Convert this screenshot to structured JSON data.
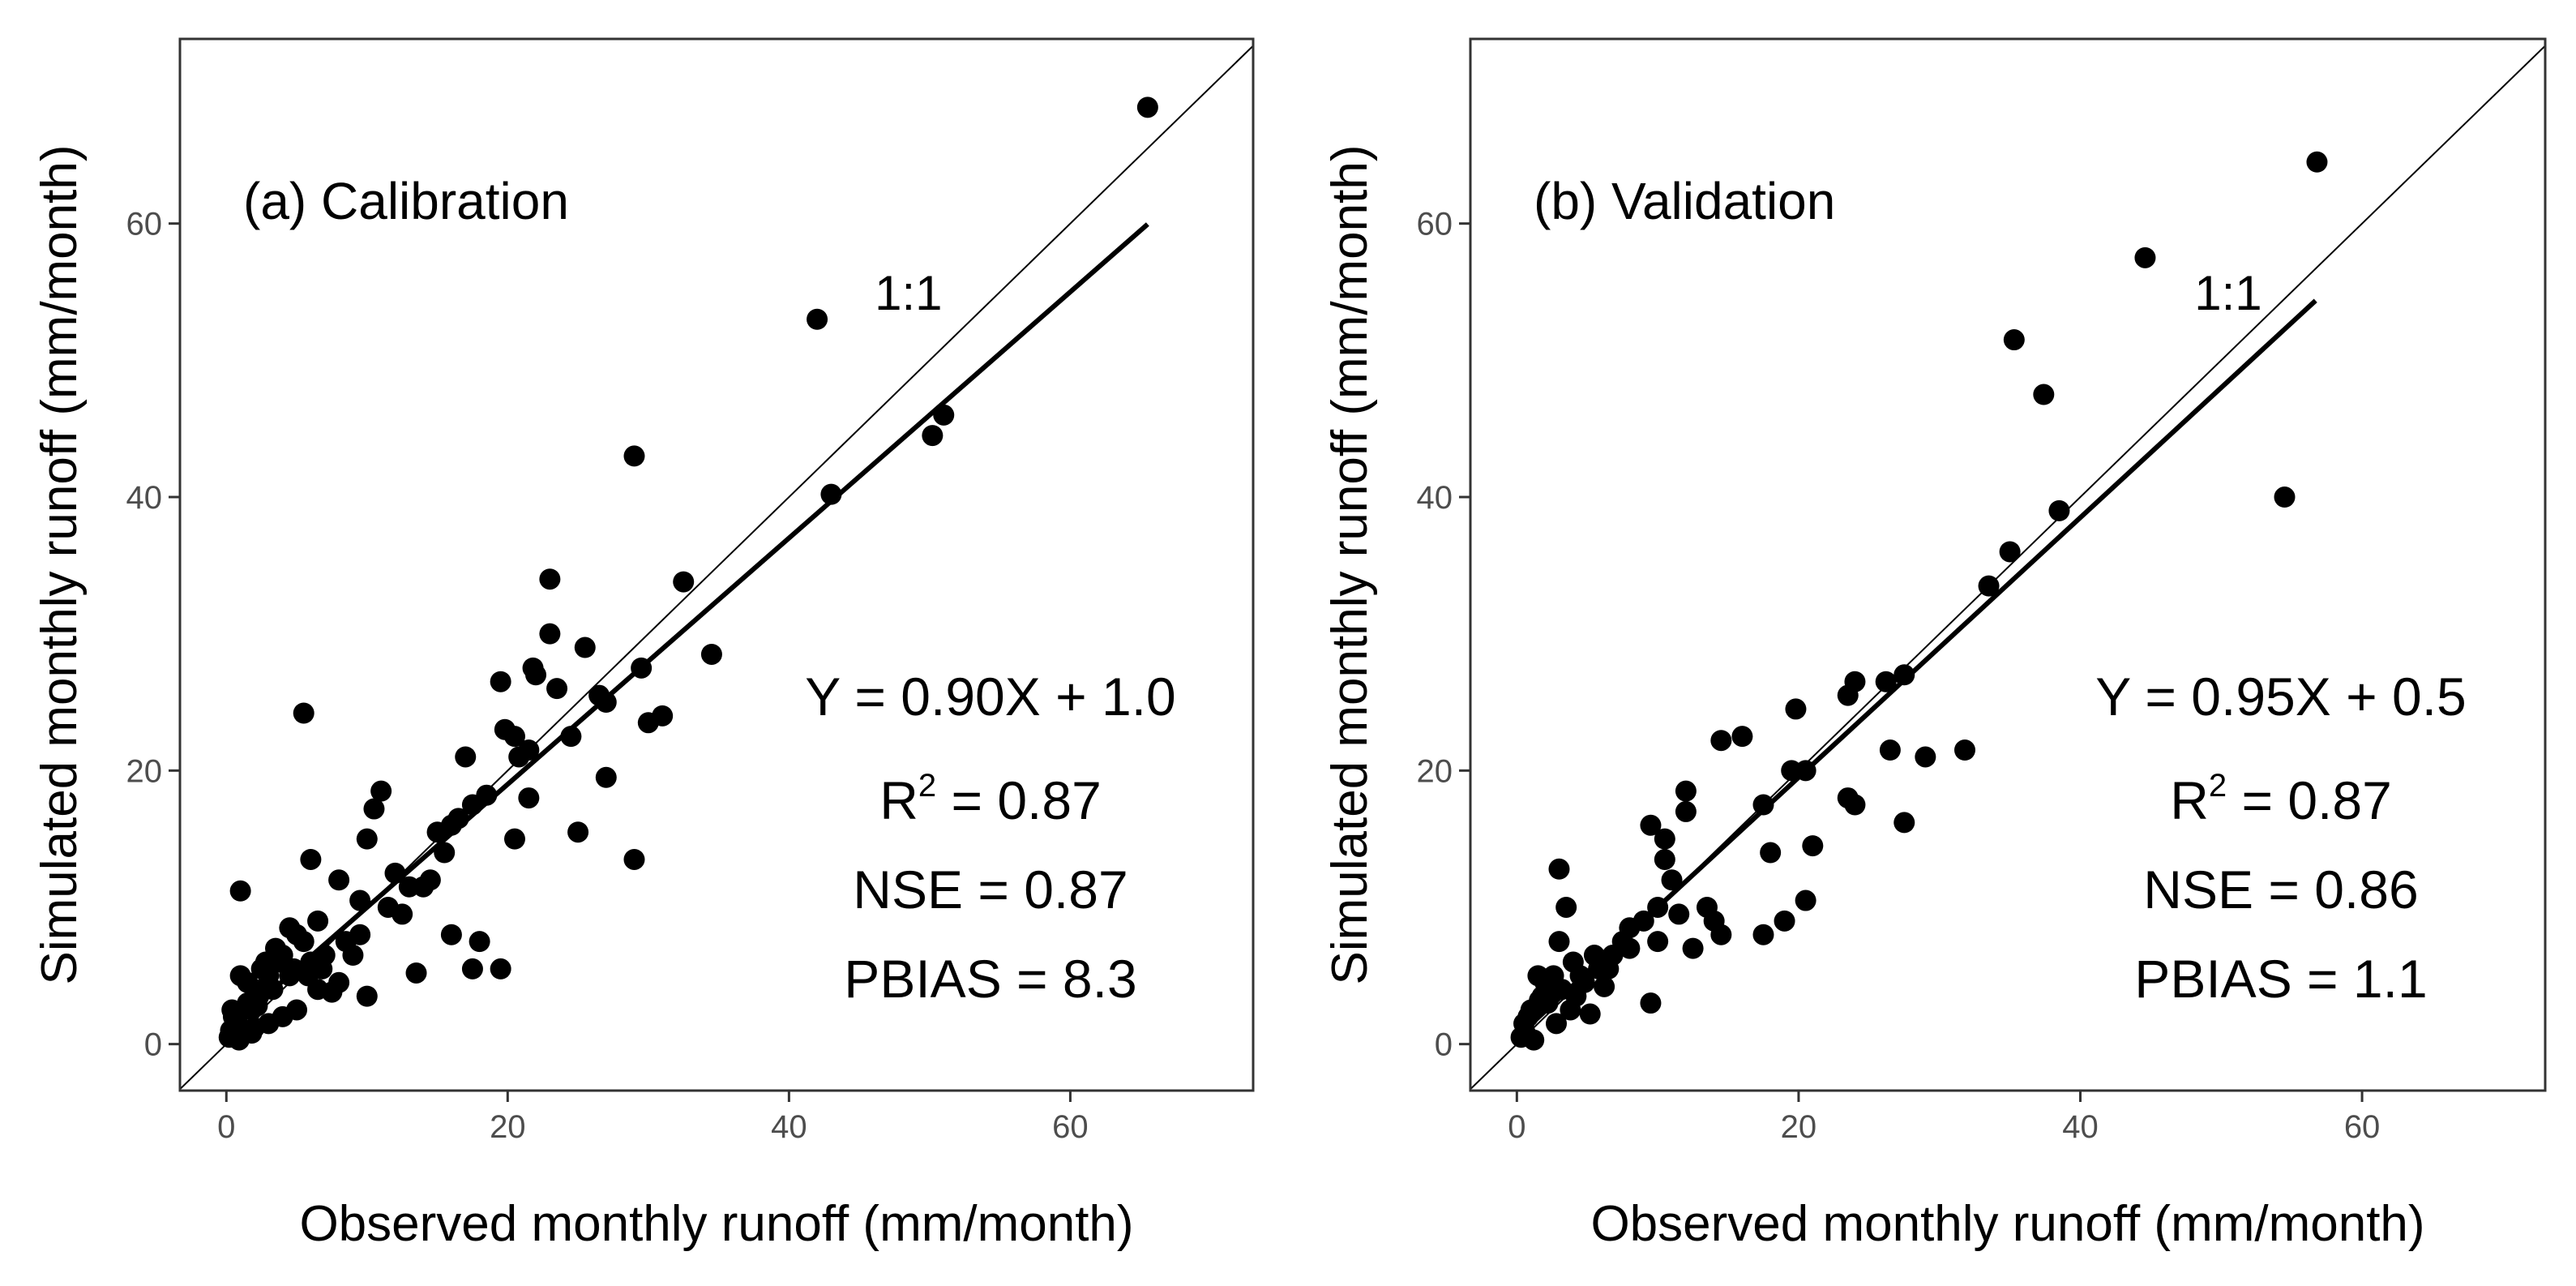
{
  "chart_data": [
    {
      "type": "scatter",
      "panel_label": "(a) Calibration",
      "xlabel": "Observed monthly runoff (mm/month)",
      "ylabel": "Simulated monthly runoff (mm/month)",
      "xlim": [
        -3.3,
        73
      ],
      "ylim": [
        -3.4,
        73.5
      ],
      "xticks": [
        0,
        20,
        40,
        60
      ],
      "yticks": [
        0,
        20,
        40,
        60
      ],
      "grid": false,
      "one_to_one_label": "1:1",
      "one_to_one_label_at": [
        48.5,
        55
      ],
      "equation": "Y = 0.90X + 1.0",
      "r2_label": "R",
      "r2_sup": "2",
      "r2_value": " = 0.87",
      "nse": "NSE = 0.87",
      "pbias": "PBIAS = 8.3",
      "fit": {
        "slope": 0.9,
        "intercept": 1.0,
        "x_range": [
          0,
          65.5
        ]
      },
      "x": [
        65.5,
        42,
        43,
        50.2,
        51,
        29,
        23,
        32.5,
        23,
        21.8,
        25.5,
        22,
        23.5,
        19.5,
        20.5,
        19.8,
        30,
        31,
        34.5,
        29.5,
        27,
        26.5,
        24.5,
        21.5,
        20.8,
        25,
        27,
        20.5,
        21.5,
        29,
        5.5,
        17,
        18.5,
        17.5,
        16,
        15.5,
        14.5,
        13,
        12,
        11,
        10.5,
        10,
        8,
        9.5,
        11.5,
        12.5,
        14,
        15,
        16.5,
        18,
        19.5,
        17.5,
        16,
        13.5,
        10,
        6,
        6.5,
        5,
        5.5,
        4.5,
        4,
        3.5,
        3,
        2.5,
        2,
        1.5,
        1,
        1,
        0.5,
        0.3,
        0.8,
        1.8,
        2.3,
        3.3,
        4.5,
        6,
        7,
        8.5,
        9.5,
        7.5,
        8,
        6.5,
        5,
        4,
        3,
        2,
        1.2,
        0.6,
        0.2,
        0.4,
        1.5,
        2.8,
        3.8,
        4.8,
        5.8,
        6.8,
        9,
        1.8,
        0.9,
        2.2
      ],
      "y": [
        68.5,
        53,
        40.2,
        44.5,
        46,
        43,
        34,
        33.8,
        30,
        27.5,
        29,
        27,
        26,
        26.5,
        22.5,
        23,
        23.5,
        24,
        28.5,
        27.5,
        25,
        25.5,
        22.5,
        21.5,
        21,
        15.5,
        19.5,
        15,
        18,
        13.5,
        24.2,
        21,
        18.2,
        17.5,
        16,
        14,
        12,
        11.5,
        12.5,
        18.5,
        17.2,
        15,
        12,
        10.5,
        10,
        9.5,
        11.5,
        15.5,
        16.5,
        7.5,
        5.5,
        5.5,
        8,
        5.2,
        3.5,
        13.5,
        9,
        8,
        7.5,
        8.5,
        6.5,
        7,
        5,
        5.5,
        4,
        3,
        11.2,
        5,
        2,
        1,
        1.5,
        2.5,
        3.5,
        4,
        5,
        6,
        6.5,
        7.5,
        8,
        3.8,
        4.5,
        4,
        2.5,
        2,
        1.5,
        1.2,
        0.8,
        0.5,
        0.5,
        2.5,
        4.5,
        6,
        6,
        5.5,
        5,
        5.5,
        6.5,
        0.8,
        0.3,
        2.8
      ]
    },
    {
      "type": "scatter",
      "panel_label": "(b) Validation",
      "xlabel": "Observed monthly runoff (mm/month)",
      "ylabel": "Simulated monthly runoff (mm/month)",
      "xlim": [
        -3.3,
        73
      ],
      "ylim": [
        -3.4,
        73.5
      ],
      "xticks": [
        0,
        20,
        40,
        60
      ],
      "yticks": [
        0,
        20,
        40,
        60
      ],
      "grid": false,
      "one_to_one_label": "1:1",
      "one_to_one_label_at": [
        50.5,
        55
      ],
      "equation": "Y = 0.95X + 0.5",
      "r2_label": "R",
      "r2_sup": "2",
      "r2_value": " = 0.87",
      "nse": "NSE = 0.86",
      "pbias": "PBIAS = 1.1",
      "fit": {
        "slope": 0.95,
        "intercept": 0.5,
        "x_range": [
          0,
          56.7
        ]
      },
      "x": [
        56.8,
        44.6,
        35.3,
        37.4,
        54.5,
        38.5,
        35,
        33.5,
        27.5,
        26.2,
        24,
        23.5,
        20.5,
        19.5,
        17.5,
        16,
        14.5,
        19.8,
        23.5,
        24,
        26.5,
        29,
        31.8,
        27.5,
        21,
        20.5,
        19,
        18,
        17.5,
        12,
        12,
        10.5,
        10.5,
        9.5,
        8,
        9.5,
        10,
        11,
        12.5,
        14,
        14.5,
        13.5,
        11.5,
        10,
        9,
        8,
        6.5,
        5.5,
        4.5,
        4,
        3.5,
        3,
        3,
        2.5,
        2,
        1.8,
        1.5,
        1,
        0.5,
        0.3,
        0.8,
        2.2,
        3.2,
        4.8,
        5.8,
        6.8,
        7.5,
        1.2,
        2.8,
        3.8,
        0.6,
        1.6,
        2.6,
        4.2,
        5.2,
        6.2
      ],
      "y": [
        64.5,
        57.5,
        51.5,
        47.5,
        40,
        39,
        36,
        33.5,
        27,
        26.5,
        26.5,
        25.5,
        20,
        20,
        17.5,
        22.5,
        22.2,
        24.5,
        18,
        17.5,
        21.5,
        21,
        21.5,
        16.2,
        14.5,
        10.5,
        9,
        14,
        8,
        18.5,
        17,
        15,
        13.5,
        16,
        8.5,
        3,
        10,
        12,
        7,
        9,
        8,
        10,
        9.5,
        7.5,
        9,
        7,
        5.5,
        6.5,
        5,
        6,
        10,
        12.8,
        7.5,
        4,
        4.5,
        3.5,
        5,
        2.5,
        1.5,
        0.5,
        2,
        3,
        4,
        4.5,
        5.5,
        6.5,
        7.5,
        0.3,
        1.5,
        2.5,
        0.8,
        3.2,
        5,
        3.5,
        2.2,
        4.2
      ]
    }
  ]
}
